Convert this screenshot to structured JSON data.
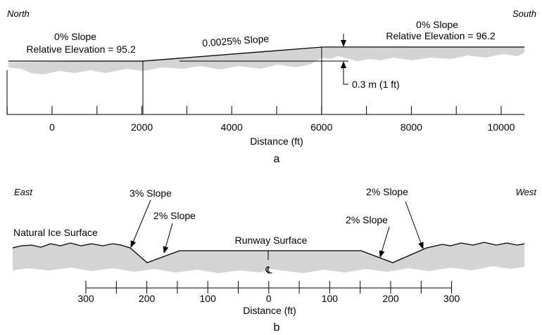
{
  "panel_a": {
    "left_direction": "North",
    "right_direction": "South",
    "left_slope": "0% Slope",
    "left_elevation": "Relative Elevation = 95.2",
    "middle_slope": "0.0025% Slope",
    "right_slope": "0% Slope",
    "right_elevation": "Relative Elevation = 96.2",
    "rise_label": "0.3 m (1 ft)",
    "axis_label": "Distance (ft)",
    "tick_labels": [
      "0",
      "2000",
      "4000",
      "6000",
      "8000",
      "10000"
    ],
    "panel_label": "a"
  },
  "panel_b": {
    "left_direction": "East",
    "right_direction": "West",
    "left_outer_slope": "3% Slope",
    "left_inner_slope": "2% Slope",
    "right_outer_slope": "2% Slope",
    "right_inner_slope": "2% Slope",
    "natural_surface": "Natural Ice Surface",
    "runway_surface": "Runway Surface",
    "centerline_symbol": "℄",
    "axis_label": "Distance (ft)",
    "tick_labels": [
      "300",
      "200",
      "100",
      "0",
      "100",
      "200",
      "300"
    ],
    "panel_label": "b"
  }
}
